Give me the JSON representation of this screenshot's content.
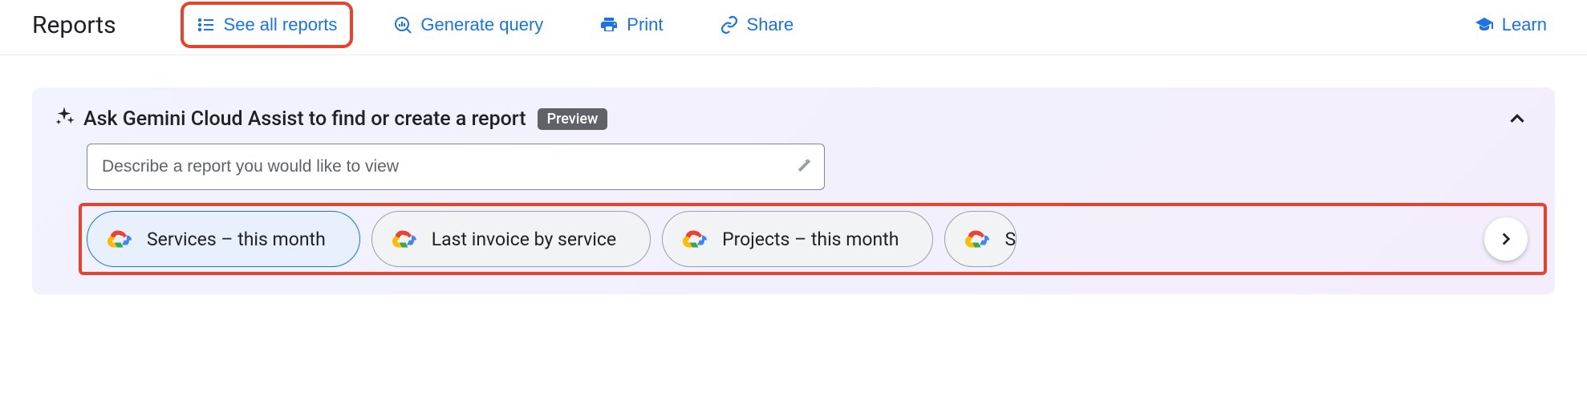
{
  "toolbar": {
    "title": "Reports",
    "see_all": "See all reports",
    "generate_query": "Generate query",
    "print": "Print",
    "share": "Share",
    "learn": "Learn"
  },
  "panel": {
    "title": "Ask Gemini Cloud Assist to find or create a report",
    "badge": "Preview",
    "input_placeholder": "Describe a report you would like to view"
  },
  "chips": [
    {
      "label": "Services – this month",
      "active": true
    },
    {
      "label": "Last invoice by service",
      "active": false
    },
    {
      "label": "Projects – this month",
      "active": false
    },
    {
      "label": "S",
      "active": false,
      "partial": true
    }
  ],
  "colors": {
    "link": "#1a73e8",
    "highlight_border": "#e8412c",
    "panel_bg_start": "#f1f3fe",
    "panel_bg_end": "#f4eefc",
    "badge_bg": "#5f6368",
    "text": "#202124",
    "muted": "#5f6368",
    "border": "#9aa0a6",
    "chip_bg": "#f1f3f4",
    "chip_active_bg": "#e8f0fe"
  }
}
